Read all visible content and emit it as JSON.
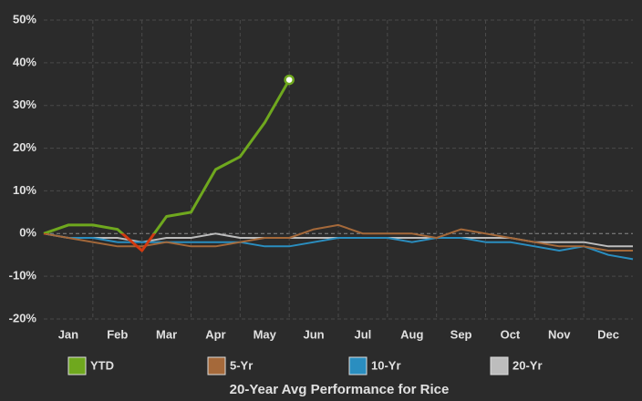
{
  "chart_data": {
    "type": "line",
    "title": "20-Year Avg Performance for Rice",
    "x": [
      0,
      0.5,
      1,
      1.5,
      2,
      2.5,
      3,
      3.5,
      4,
      4.5,
      5,
      5.5,
      6,
      6.5,
      7,
      7.5,
      8,
      8.5,
      9,
      9.5,
      10,
      10.5,
      11,
      11.5,
      12
    ],
    "xlim": [
      0,
      12
    ],
    "xticks": [
      {
        "value": 0.5,
        "label": "Jan"
      },
      {
        "value": 1.5,
        "label": "Feb"
      },
      {
        "value": 2.5,
        "label": "Mar"
      },
      {
        "value": 3.5,
        "label": "Apr"
      },
      {
        "value": 4.5,
        "label": "May"
      },
      {
        "value": 5.5,
        "label": "Jun"
      },
      {
        "value": 6.5,
        "label": "Jul"
      },
      {
        "value": 7.5,
        "label": "Aug"
      },
      {
        "value": 8.5,
        "label": "Sep"
      },
      {
        "value": 9.5,
        "label": "Oct"
      },
      {
        "value": 10.5,
        "label": "Nov"
      },
      {
        "value": 11.5,
        "label": "Dec"
      }
    ],
    "x_gridlines": [
      1,
      2,
      3,
      4,
      5,
      6,
      7,
      8,
      9,
      10,
      11
    ],
    "ylim": [
      -20,
      50
    ],
    "yticks": [
      {
        "value": -20,
        "label": "-20%"
      },
      {
        "value": -10,
        "label": "-10%"
      },
      {
        "value": 0,
        "label": "0%"
      },
      {
        "value": 10,
        "label": "10%"
      },
      {
        "value": 20,
        "label": "20%"
      },
      {
        "value": 30,
        "label": "30%"
      },
      {
        "value": 40,
        "label": "40%"
      },
      {
        "value": 50,
        "label": "50%"
      }
    ],
    "grid": true,
    "legend": "bottom",
    "series": [
      {
        "name": "YTD",
        "color": "#6fa81e",
        "negative_color": "#d23a10",
        "values": [
          0,
          2,
          2,
          1,
          -4,
          4,
          5,
          15,
          18,
          26,
          36,
          null,
          null,
          null,
          null,
          null,
          null,
          null,
          null,
          null,
          null,
          null,
          null,
          null,
          null
        ]
      },
      {
        "name": "5-Yr",
        "color": "#a5693a",
        "values": [
          0,
          -1,
          -2,
          -3,
          -3,
          -2,
          -3,
          -3,
          -2,
          -1,
          -1,
          1,
          2,
          0,
          0,
          0,
          -1,
          1,
          0,
          -1,
          -2,
          -3,
          -3,
          -4,
          -4
        ]
      },
      {
        "name": "10-Yr",
        "color": "#2a8ec0",
        "values": [
          0,
          -1,
          -1,
          -2,
          -2,
          -2,
          -2,
          -2,
          -2,
          -3,
          -3,
          -2,
          -1,
          -1,
          -1,
          -2,
          -1,
          -1,
          -2,
          -2,
          -3,
          -4,
          -3,
          -5,
          -6
        ]
      },
      {
        "name": "20-Yr",
        "color": "#bdbdbd",
        "values": [
          0,
          -1,
          -1,
          -1,
          -2,
          -1,
          -1,
          0,
          -1,
          -1,
          -1,
          -1,
          -1,
          -1,
          -1,
          -1,
          -1,
          -1,
          -1,
          -1,
          -2,
          -2,
          -2,
          -3,
          -3
        ]
      }
    ]
  }
}
